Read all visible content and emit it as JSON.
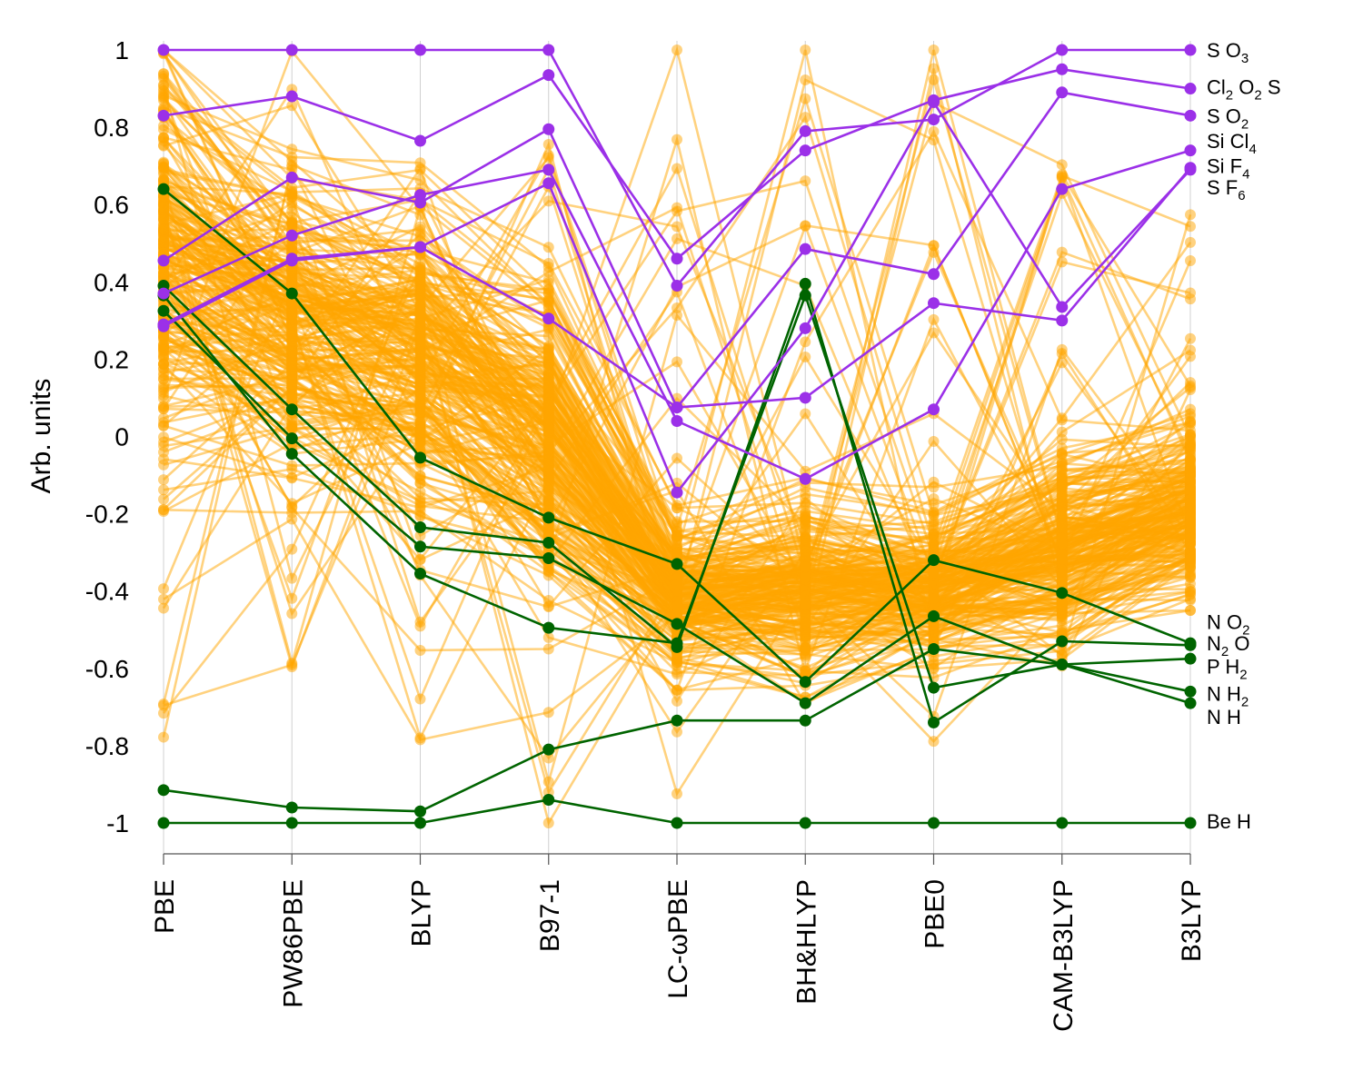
{
  "chart_data": {
    "type": "parallel-coordinates",
    "ylabel": "Arb. units",
    "ylim": [
      -1,
      1
    ],
    "yticks": [
      1,
      0.8,
      0.6,
      0.4,
      0.2,
      0,
      -0.2,
      -0.4,
      -0.6,
      -0.8,
      -1
    ],
    "ytick_labels": [
      "1",
      "0.8",
      "0.6",
      "0.4",
      "0.2",
      "0",
      "-0.2",
      "-0.4",
      "-0.6",
      "-0.8",
      "-1"
    ],
    "categories": [
      "PBE",
      "PW86PBE",
      "BLYP",
      "B97-1",
      "LC-ωPBE",
      "BH&HLYP",
      "PBE0",
      "CAM-B3LYP",
      "B3LYP"
    ],
    "colors": {
      "highlight_top": "#9b30e8",
      "highlight_bottom": "#006400",
      "background": "#ffa500"
    },
    "background_series_count": 260,
    "top_series": [
      {
        "name": "S O3",
        "base": "S O",
        "sub": "3",
        "values": [
          1.0,
          1.0,
          1.0,
          1.0,
          0.39,
          0.79,
          0.82,
          1.0,
          1.0
        ]
      },
      {
        "name": "Cl2 O2 S",
        "values": [
          0.83,
          0.88,
          0.765,
          0.935,
          0.46,
          0.74,
          0.87,
          0.95,
          0.9
        ]
      },
      {
        "name": "S O2",
        "base": "S O",
        "sub": "2",
        "values": [
          0.455,
          0.67,
          0.605,
          0.795,
          0.075,
          0.485,
          0.42,
          0.89,
          0.83
        ]
      },
      {
        "name": "Si Cl4",
        "values": [
          0.37,
          0.52,
          0.625,
          0.69,
          0.04,
          -0.11,
          0.07,
          0.64,
          0.74
        ]
      },
      {
        "name": "Si F4",
        "values": [
          0.285,
          0.455,
          0.49,
          0.655,
          -0.145,
          0.28,
          0.865,
          0.335,
          0.69
        ]
      },
      {
        "name": "S F6",
        "values": [
          0.29,
          0.46,
          0.49,
          0.305,
          0.075,
          0.1,
          0.345,
          0.3,
          0.695
        ]
      }
    ],
    "bottom_series": [
      {
        "name": "N O2",
        "values": [
          0.64,
          0.37,
          -0.055,
          -0.21,
          -0.33,
          -0.635,
          -0.32,
          -0.405,
          -0.535
        ]
      },
      {
        "name": "N2 O",
        "values": [
          0.39,
          0.07,
          -0.235,
          -0.275,
          -0.545,
          0.395,
          -0.74,
          -0.53,
          -0.54
        ]
      },
      {
        "name": "P H2",
        "values": [
          0.325,
          -0.005,
          -0.285,
          -0.315,
          -0.485,
          -0.69,
          -0.465,
          -0.59,
          -0.575
        ]
      },
      {
        "name": "N H2",
        "values": [
          0.365,
          -0.045,
          -0.355,
          -0.495,
          -0.535,
          0.365,
          -0.65,
          -0.59,
          -0.66
        ]
      },
      {
        "name": "N H",
        "values": [
          -0.915,
          -0.96,
          -0.97,
          -0.81,
          -0.735,
          -0.735,
          -0.55,
          -0.59,
          -0.69
        ]
      },
      {
        "name": "Be H",
        "values": [
          -1.0,
          -1.0,
          -1.0,
          -0.94,
          -1.0,
          -1.0,
          -1.0,
          -1.0,
          -1.0
        ]
      }
    ],
    "labels_top": [
      {
        "base": "S O",
        "subs": [
          "3"
        ],
        "parts": [
          "S O",
          "3"
        ],
        "value": 1.0
      },
      {
        "parts": [
          "Cl",
          "2",
          " O",
          "2",
          " S"
        ],
        "value": 0.905
      },
      {
        "parts": [
          "S O",
          "2"
        ],
        "value": 0.83
      },
      {
        "parts": [
          "Si Cl",
          "4"
        ],
        "value": 0.765
      },
      {
        "parts": [
          "Si F",
          "4"
        ],
        "value": 0.7
      },
      {
        "parts": [
          "S F",
          "6"
        ],
        "value": 0.645
      }
    ],
    "labels_bottom": [
      {
        "parts": [
          "N O",
          "2"
        ],
        "value": -0.48
      },
      {
        "parts": [
          "N",
          "2",
          " O"
        ],
        "value": -0.535
      },
      {
        "parts": [
          "P H",
          "2"
        ],
        "value": -0.595
      },
      {
        "parts": [
          "N H",
          "2"
        ],
        "value": -0.665
      },
      {
        "parts": [
          "N H"
        ],
        "value": -0.725
      },
      {
        "parts": [
          "Be H"
        ],
        "value": -0.995
      }
    ],
    "background_profile": {
      "centers": [
        0.45,
        0.3,
        0.2,
        0.0,
        -0.42,
        -0.4,
        -0.4,
        -0.3,
        -0.2
      ],
      "spreads": [
        0.27,
        0.22,
        0.22,
        0.22,
        0.1,
        0.12,
        0.1,
        0.13,
        0.12
      ],
      "outlier_max": [
        1.0,
        1.0,
        0.82,
        0.78,
        1.0,
        1.0,
        1.0,
        0.76,
        0.68
      ],
      "outlier_min": [
        -0.82,
        -0.68,
        -0.8,
        -1.0,
        -0.94,
        -0.7,
        -0.79,
        -0.6,
        -0.45
      ]
    }
  }
}
